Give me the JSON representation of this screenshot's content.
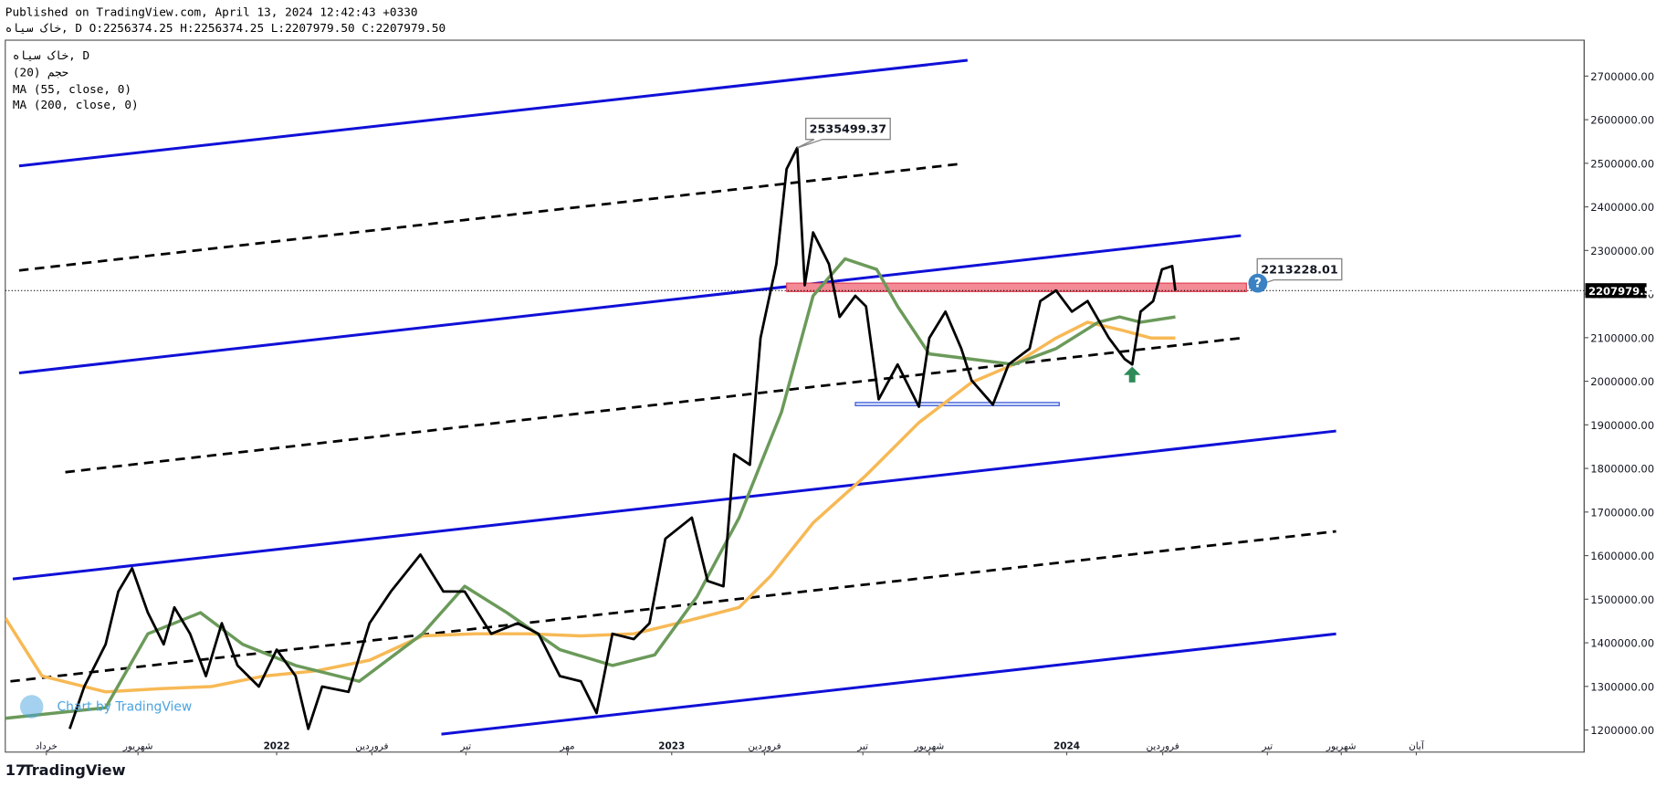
{
  "header": {
    "published": "Published on TradingView.com, April 13, 2024 12:42:43 +0330",
    "ohlc": "خاک سیاه, D O:2256374.25 H:2256374.25 L:2207979.50 C:2207979.50"
  },
  "legend": [
    "خاک سیاه, D",
    "حجم (20)",
    "MA (55, close, 0)",
    "MA (200, close, 0)"
  ],
  "footer": {
    "watermark": "Chart by TradingView",
    "brand": "TradingView"
  },
  "chart_data": {
    "type": "line",
    "xlim": [
      2021.313,
      2025.31
    ],
    "ylim": [
      1149300,
      2782400
    ],
    "grid": false,
    "xticks": [
      {
        "value": 2021.417,
        "label": "خرداد"
      },
      {
        "value": 2021.649,
        "label": "شهریور"
      },
      {
        "value": 2022.0,
        "label": "2022"
      },
      {
        "value": 2022.241,
        "label": "فروردین"
      },
      {
        "value": 2022.479,
        "label": "تیر"
      },
      {
        "value": 2022.736,
        "label": "مهر"
      },
      {
        "value": 2023.0,
        "label": "2023"
      },
      {
        "value": 2023.235,
        "label": "فروردین"
      },
      {
        "value": 2023.484,
        "label": "تیر"
      },
      {
        "value": 2023.652,
        "label": "شهریور"
      },
      {
        "value": 2024.0,
        "label": "2024"
      },
      {
        "value": 2024.243,
        "label": "فروردین"
      },
      {
        "value": 2024.508,
        "label": "تیر"
      },
      {
        "value": 2024.695,
        "label": "شهریور"
      },
      {
        "value": 2024.885,
        "label": "آبان"
      }
    ],
    "yticks": [
      {
        "value": 1200000,
        "label": "1200000.00"
      },
      {
        "value": 1300000,
        "label": "1300000.00"
      },
      {
        "value": 1400000,
        "label": "1400000.00"
      },
      {
        "value": 1500000,
        "label": "1500000.00"
      },
      {
        "value": 1600000,
        "label": "1600000.00"
      },
      {
        "value": 1700000,
        "label": "1700000.00"
      },
      {
        "value": 1800000,
        "label": "1800000.00"
      },
      {
        "value": 1900000,
        "label": "1900000.00"
      },
      {
        "value": 2000000,
        "label": "2000000.00"
      },
      {
        "value": 2100000,
        "label": "2100000.00"
      },
      {
        "value": 2200000,
        "label": "2200000.00"
      },
      {
        "value": 2300000,
        "label": "2300000.00"
      },
      {
        "value": 2400000,
        "label": "2400000.00"
      },
      {
        "value": 2500000,
        "label": "2500000.00"
      },
      {
        "value": 2600000,
        "label": "2600000.00"
      },
      {
        "value": 2700000,
        "label": "2700000.00"
      }
    ],
    "series": [
      {
        "name": "خاک سیاه, D",
        "color": "#000000",
        "width": 2.4,
        "x": [
          2021.476,
          2021.513,
          2021.567,
          2021.599,
          2021.634,
          2021.674,
          2021.714,
          2021.741,
          2021.781,
          2021.821,
          2021.861,
          2021.901,
          2021.955,
          2022.0,
          2022.048,
          2022.08,
          2022.115,
          2022.182,
          2022.235,
          2022.289,
          2022.364,
          2022.422,
          2022.476,
          2022.543,
          2022.61,
          2022.663,
          2022.717,
          2022.77,
          2022.81,
          2022.85,
          2022.904,
          2022.944,
          2022.984,
          2023.051,
          2023.091,
          2023.131,
          2023.158,
          2023.198,
          2023.225,
          2023.265,
          2023.291,
          2023.318,
          2023.337,
          2023.358,
          2023.398,
          2023.425,
          2023.465,
          2023.492,
          2023.524,
          2023.572,
          2023.626,
          2023.652,
          2023.693,
          2023.733,
          2023.759,
          2023.813,
          2023.853,
          2023.906,
          2023.933,
          2023.973,
          2024.013,
          2024.053,
          2024.107,
          2024.147,
          2024.166,
          2024.187,
          2024.219,
          2024.241,
          2024.267,
          2024.275
        ],
        "values": [
          1202600,
          1299500,
          1396400,
          1517600,
          1570900,
          1469100,
          1396400,
          1481300,
          1420600,
          1323700,
          1444900,
          1348000,
          1299500,
          1384300,
          1323700,
          1202600,
          1299500,
          1287400,
          1444900,
          1517600,
          1602400,
          1517600,
          1517600,
          1420600,
          1444900,
          1420600,
          1323700,
          1311600,
          1238900,
          1420600,
          1408500,
          1444900,
          1638700,
          1687200,
          1541800,
          1529700,
          1832600,
          1808300,
          2099100,
          2268700,
          2486800,
          2535499.37,
          2220300,
          2341400,
          2268700,
          2147600,
          2196000,
          2171800,
          1958600,
          2038500,
          1941600,
          2099100,
          2159700,
          2074900,
          2002100,
          1946500,
          2038500,
          2074900,
          2183900,
          2208100,
          2159700,
          2183900,
          2099100,
          2050600,
          2038500,
          2159700,
          2183900,
          2256600,
          2264000,
          2207979.5
        ]
      },
      {
        "name": "MA (55, close, 0)",
        "color": "#6b9a5a",
        "width": 3,
        "x": [
          2021.313,
          2021.567,
          2021.674,
          2021.807,
          2021.914,
          2022.048,
          2022.209,
          2022.369,
          2022.476,
          2022.583,
          2022.717,
          2022.85,
          2022.957,
          2023.064,
          2023.171,
          2023.278,
          2023.358,
          2023.439,
          2023.519,
          2023.572,
          2023.652,
          2023.759,
          2023.866,
          2023.973,
          2024.08,
          2024.134,
          2024.187,
          2024.275
        ],
        "values": [
          1226800,
          1251000,
          1420600,
          1469100,
          1396400,
          1348000,
          1311600,
          1420600,
          1529700,
          1469100,
          1384300,
          1348000,
          1372200,
          1505500,
          1687200,
          1929500,
          2196000,
          2280800,
          2256600,
          2171800,
          2062800,
          2050600,
          2038500,
          2074900,
          2135400,
          2147600,
          2135400,
          2147600
        ]
      },
      {
        "name": "MA (200, close, 0)",
        "color": "#f7b955",
        "width": 3,
        "x": [
          2021.313,
          2021.406,
          2021.567,
          2021.701,
          2021.834,
          2021.968,
          2022.102,
          2022.235,
          2022.369,
          2022.503,
          2022.636,
          2022.77,
          2022.904,
          2023.037,
          2023.171,
          2023.251,
          2023.358,
          2023.492,
          2023.626,
          2023.759,
          2023.866,
          2023.973,
          2024.053,
          2024.134,
          2024.214,
          2024.275
        ],
        "values": [
          1457000,
          1323700,
          1287400,
          1294700,
          1299500,
          1323700,
          1335800,
          1360100,
          1415800,
          1420600,
          1420600,
          1415800,
          1420600,
          1449700,
          1481300,
          1553900,
          1675100,
          1784100,
          1905300,
          1997300,
          2038500,
          2099100,
          2135400,
          2118500,
          2099100,
          2099100
        ]
      }
    ],
    "trendlines": [
      {
        "color": "#1010d8",
        "dashed": false,
        "x": [
          2021.348,
          2023.749
        ],
        "y": [
          2494000,
          2736300
        ]
      },
      {
        "color": "#1010d8",
        "dashed": false,
        "x": [
          2021.348,
          2024.441
        ],
        "y": [
          2019100,
          2334100
        ]
      },
      {
        "color": "#1010d8",
        "dashed": false,
        "x": [
          2021.332,
          2024.682
        ],
        "y": [
          1546600,
          1885900
        ]
      },
      {
        "color": "#1010d8",
        "dashed": false,
        "x": [
          2022.417,
          2024.682
        ],
        "y": [
          1190500,
          1420600
        ]
      },
      {
        "color": "#000000",
        "dashed": true,
        "x": [
          2021.348,
          2023.733
        ],
        "y": [
          2254200,
          2498900
        ]
      },
      {
        "color": "#000000",
        "dashed": true,
        "x": [
          2021.465,
          2024.441
        ],
        "y": [
          1791400,
          2099100
        ]
      },
      {
        "color": "#000000",
        "dashed": true,
        "x": [
          2021.326,
          2024.682
        ],
        "y": [
          1311600,
          1655700
        ]
      }
    ],
    "zones": [
      {
        "color": "#f28b96",
        "stroke": "#e04050",
        "x": [
          2023.291,
          2024.455
        ],
        "y": [
          2205700,
          2225100
        ]
      },
      {
        "color": "#dde6ff",
        "stroke": "#3050d0",
        "x": [
          2023.465,
          2023.981
        ],
        "y": [
          1944000,
          1951300
        ]
      }
    ],
    "callouts": [
      {
        "x": 2023.318,
        "y": 2535499.37,
        "label": "2535499.37"
      },
      {
        "x": 2024.461,
        "y": 2213228.01,
        "label": "2213228.01"
      }
    ],
    "last_price": {
      "value": 2207979.5,
      "label": "2207979.50"
    }
  }
}
